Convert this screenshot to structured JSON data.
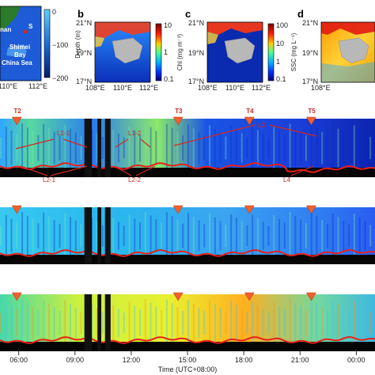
{
  "colors": {
    "land": "#b8b8b8",
    "deep_blue": "#00208c",
    "accent_red": "#d2281e"
  },
  "panels": {
    "a": {
      "labels": [
        "nan",
        "S",
        "Shimei",
        "Bay",
        "China Sea"
      ],
      "lon_ticks": [
        "110°E",
        "112°E"
      ],
      "colorbar_title": "Depth (m)",
      "colorbar_ticks": [
        "0",
        "−100",
        "−200"
      ]
    },
    "b": {
      "letter": "b",
      "lat_ticks": [
        "21°N",
        "19°N",
        "17°N"
      ],
      "lon_ticks": [
        "108°E",
        "110°E",
        "112°E"
      ],
      "colorbar_title": "Chl (mg m⁻³)",
      "colorbar_ticks": [
        "10",
        "1",
        "0.1"
      ]
    },
    "c": {
      "letter": "c",
      "lat_ticks": [
        "21°N",
        "19°N",
        "17°N"
      ],
      "lon_ticks": [
        "108°E",
        "110°E",
        "112°E"
      ],
      "colorbar_title": "SSC (mg L⁻¹)",
      "colorbar_ticks": [
        "100",
        "10",
        "1",
        "0.1"
      ]
    },
    "d": {
      "letter": "d",
      "lat_ticks": [
        "21°N",
        "19°N",
        "17°N"
      ],
      "lon_ticks": [
        "108°E"
      ]
    }
  },
  "markers": [
    "T2",
    "T3",
    "T4",
    "T5"
  ],
  "annotations": [
    "L1-1",
    "L1-2",
    "L3",
    "L2-1",
    "L2-2",
    "L4"
  ],
  "chart_data": {
    "type": "heatmap",
    "x_axis": {
      "title": "Time (UTC+08:00)",
      "ticks": [
        "06:00",
        "09:00",
        "12:00",
        "15:00",
        "18:00",
        "21:00",
        "00:00"
      ],
      "range_hours": [
        5.0,
        25.0
      ]
    },
    "markers": [
      {
        "name": "T2",
        "time_hours": 5.9
      },
      {
        "name": "T3",
        "time_hours": 14.5
      },
      {
        "name": "T4",
        "time_hours": 18.3
      },
      {
        "name": "T5",
        "time_hours": 21.6
      }
    ],
    "gaps_hours": [
      [
        9.5,
        9.9
      ],
      [
        10.2,
        10.4
      ],
      [
        10.6,
        10.9
      ]
    ],
    "rows": 3
  }
}
